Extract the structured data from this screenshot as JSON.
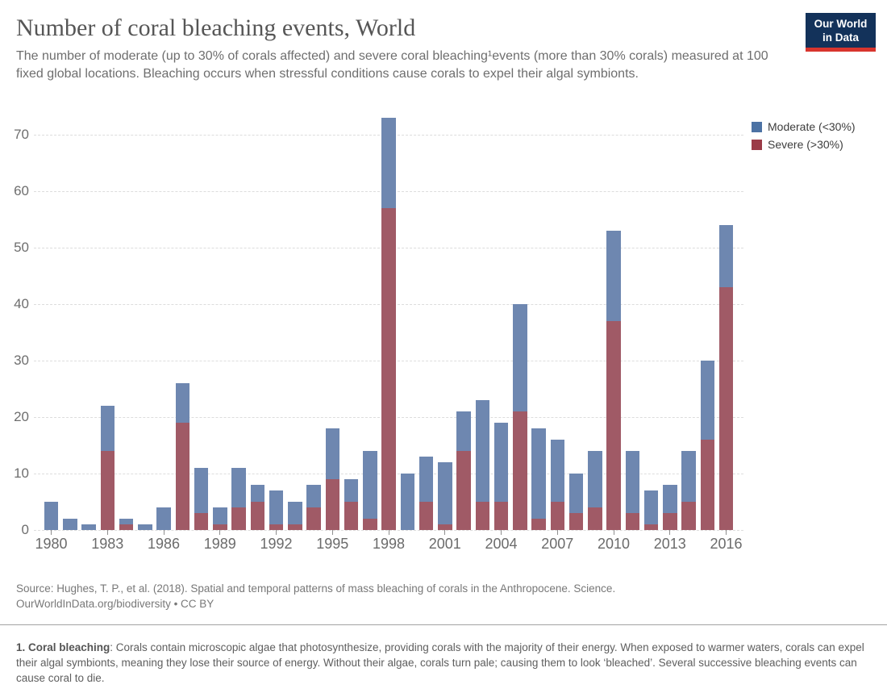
{
  "header": {
    "title": "Number of coral bleaching events, World",
    "subtitle": "The number of moderate (up to 30% of corals affected) and severe coral bleaching¹events (more than 30% corals) measured at 100 fixed global locations. Bleaching occurs when stressful conditions cause corals to expel their algal symbionts."
  },
  "logo": {
    "line1": "Our World",
    "line2": "in Data",
    "bg_color": "#13325a",
    "stripe_color": "#d8352e",
    "text_color": "#ffffff"
  },
  "chart_data": {
    "type": "bar",
    "stacked": true,
    "title": "Number of coral bleaching events, World",
    "x": [
      1980,
      1981,
      1982,
      1983,
      1984,
      1985,
      1986,
      1987,
      1988,
      1989,
      1990,
      1991,
      1992,
      1993,
      1994,
      1995,
      1996,
      1997,
      1998,
      1999,
      2000,
      2001,
      2002,
      2003,
      2004,
      2005,
      2006,
      2007,
      2008,
      2009,
      2010,
      2011,
      2012,
      2013,
      2014,
      2015,
      2016
    ],
    "series": [
      {
        "id": "moderate",
        "name": "Moderate (<30%)",
        "legend_color": "#4c72a4",
        "bar_color": "#6e87b0",
        "values": [
          5,
          2,
          1,
          8,
          1,
          1,
          4,
          7,
          8,
          3,
          7,
          3,
          6,
          4,
          4,
          9,
          4,
          12,
          16,
          10,
          8,
          11,
          7,
          18,
          14,
          19,
          16,
          11,
          7,
          10,
          16,
          11,
          6,
          5,
          9,
          14,
          11
        ]
      },
      {
        "id": "severe",
        "name": "Severe (>30%)",
        "legend_color": "#9b3b47",
        "bar_color": "#a05a66",
        "values": [
          0,
          0,
          0,
          14,
          1,
          0,
          0,
          19,
          3,
          1,
          4,
          5,
          1,
          1,
          4,
          9,
          5,
          2,
          57,
          0,
          5,
          1,
          14,
          5,
          5,
          21,
          2,
          5,
          3,
          4,
          37,
          3,
          1,
          3,
          5,
          16,
          43
        ]
      }
    ],
    "totals": [
      5,
      2,
      1,
      22,
      2,
      1,
      4,
      26,
      11,
      4,
      11,
      8,
      7,
      5,
      8,
      18,
      9,
      14,
      73,
      10,
      13,
      12,
      21,
      23,
      19,
      40,
      18,
      16,
      10,
      14,
      53,
      14,
      7,
      8,
      14,
      30,
      54
    ],
    "stack_order_bottom_to_top": [
      "severe",
      "moderate"
    ],
    "xlabel": "",
    "ylabel": "",
    "ylim": [
      0,
      75
    ],
    "y_ticks": [
      0,
      10,
      20,
      30,
      40,
      50,
      60,
      70
    ],
    "x_tick_years": [
      1980,
      1983,
      1986,
      1989,
      1992,
      1995,
      1998,
      2001,
      2004,
      2007,
      2010,
      2013,
      2016
    ],
    "grid": "horizontal-dashed",
    "legend_position": "top-right"
  },
  "footer": {
    "source_line1": "Source: Hughes, T. P., et al. (2018). Spatial and temporal patterns of mass bleaching of corals in the Anthropocene. Science.",
    "source_line2": "OurWorldInData.org/biodiversity • CC BY",
    "note_label": "1. Coral bleaching",
    "note_text": ": Corals contain microscopic algae that photosynthesize, providing corals with the majority of their energy. When exposed to warmer waters, corals can expel their algal symbionts, meaning they lose their source of energy. Without their algae, corals turn pale; causing them to look ‘bleached’. Several successive bleaching events can cause coral to die."
  }
}
